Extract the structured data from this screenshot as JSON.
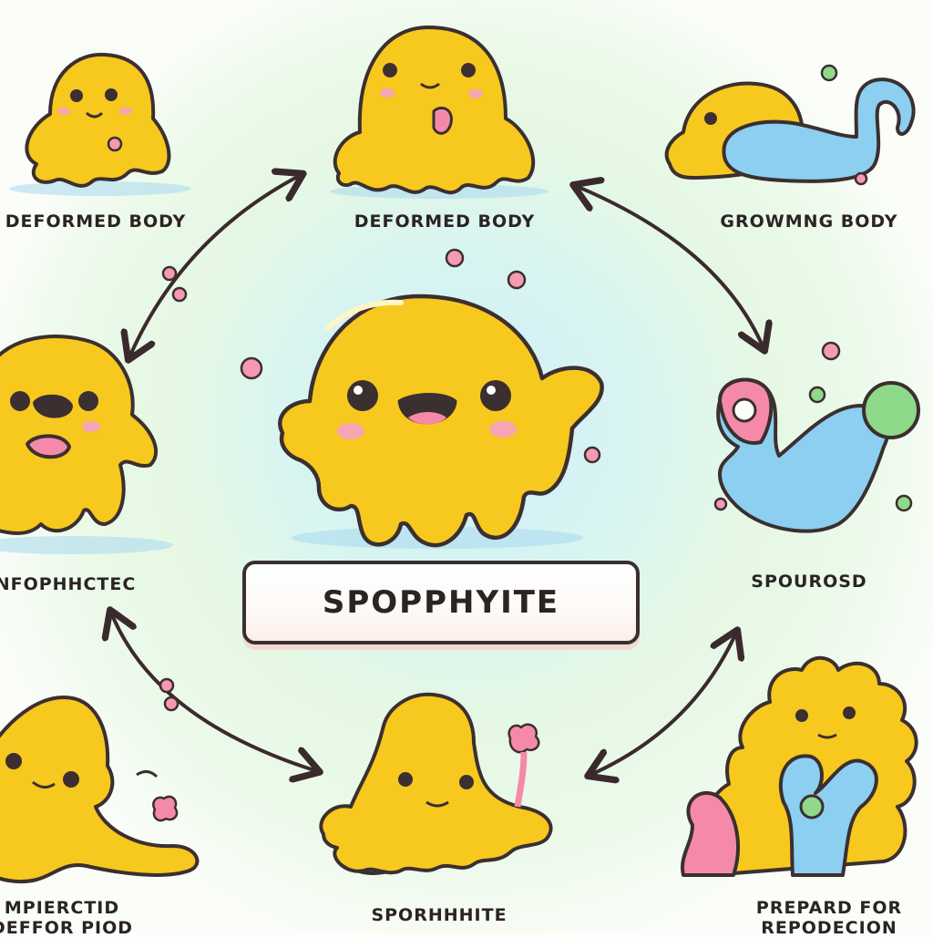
{
  "center_label": "SPOPPHYITE",
  "stages": [
    {
      "id": "top-left",
      "label": "DEFORMED BODY"
    },
    {
      "id": "top-center",
      "label": "DEFORMED BODY"
    },
    {
      "id": "top-right",
      "label": "GROWMNG BODY"
    },
    {
      "id": "middle-left",
      "label": "NFOPHHCTEC"
    },
    {
      "id": "middle-right",
      "label": "SPOUROSD"
    },
    {
      "id": "bottom-left",
      "label": "MPIERCTID\nDEFFOR PIOD"
    },
    {
      "id": "bottom-center",
      "label": "SPORHHHITE"
    },
    {
      "id": "bottom-right",
      "label": "PREPARD FOR\nREPODECION"
    }
  ],
  "colors": {
    "creature_yellow": "#f7c81e",
    "creature_shade": "#e8a70f",
    "blob_blue": "#8ccff0",
    "blob_pink": "#f58aa8",
    "blob_green": "#8fd98a",
    "outline": "#3b2f30",
    "arrow": "#3a2a2e"
  }
}
